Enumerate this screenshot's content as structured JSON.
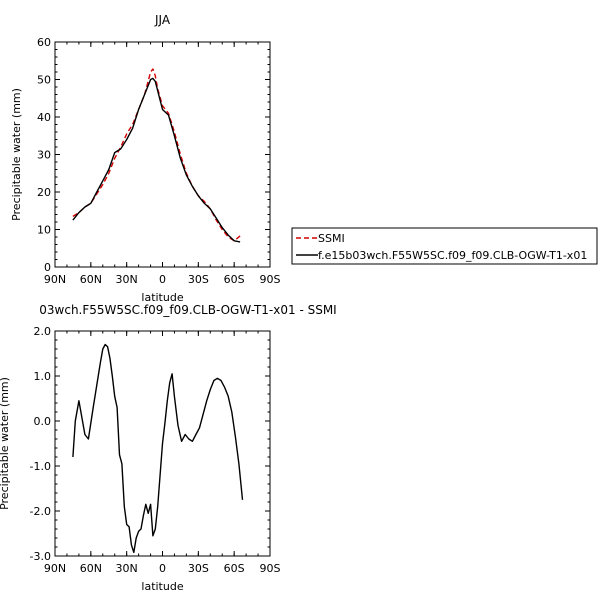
{
  "chart_data": [
    {
      "type": "line",
      "title": "JJA",
      "xlabel": "latitude",
      "ylabel": "Precipitable water (mm)",
      "xlim": [
        90,
        -90
      ],
      "ylim": [
        0,
        60
      ],
      "xticks": [
        90,
        60,
        30,
        0,
        -30,
        -60,
        -90
      ],
      "xtick_labels": [
        "90N",
        "60N",
        "30N",
        "0",
        "30S",
        "60S",
        "90S"
      ],
      "yticks": [
        0,
        10,
        20,
        30,
        40,
        50,
        60
      ],
      "ytick_labels": [
        "0",
        "10",
        "20",
        "30",
        "40",
        "50",
        "60"
      ],
      "legend_position": "right",
      "series": [
        {
          "name": "SSMI",
          "color": "#d40000",
          "dash": "dashed",
          "x": [
            75,
            70,
            65,
            60,
            55,
            50,
            45,
            40,
            35,
            30,
            25,
            20,
            15,
            10,
            8,
            6,
            4,
            0,
            -5,
            -10,
            -15,
            -20,
            -25,
            -30,
            -35,
            -40,
            -45,
            -50,
            -55,
            -60,
            -65
          ],
          "y": [
            13.5,
            14.5,
            16,
            17,
            19.5,
            22,
            25,
            29,
            32,
            35.5,
            38,
            42,
            46,
            52,
            52.8,
            51,
            47.5,
            43,
            41,
            36,
            30,
            25,
            21.5,
            19,
            17.5,
            15.5,
            12.5,
            10,
            8,
            7,
            8.3
          ]
        },
        {
          "name": "f.e15b03wch.F55W5SC.f09_f09.CLB-OGW-T1-x01",
          "color": "#000000",
          "dash": "solid",
          "x": [
            75,
            70,
            65,
            60,
            55,
            50,
            45,
            40,
            35,
            30,
            25,
            20,
            15,
            10,
            8,
            6,
            4,
            0,
            -5,
            -10,
            -15,
            -20,
            -25,
            -30,
            -35,
            -40,
            -45,
            -50,
            -55,
            -60,
            -65
          ],
          "y": [
            12.5,
            14.5,
            16,
            17,
            20,
            23,
            26,
            30.5,
            31.5,
            34,
            37,
            42,
            46,
            50,
            50.3,
            49.5,
            47,
            42,
            40.5,
            35,
            29,
            24.5,
            21.5,
            19,
            17,
            15.5,
            13,
            10.5,
            8.5,
            7,
            6.7
          ]
        }
      ]
    },
    {
      "type": "line",
      "title": "03wch.F55W5SC.f09_f09.CLB-OGW-T1-x01 - SSMI",
      "xlabel": "latitude",
      "ylabel": "Precipitable water (mm)",
      "xlim": [
        90,
        -90
      ],
      "ylim": [
        -3.0,
        2.0
      ],
      "xticks": [
        90,
        60,
        30,
        0,
        -30,
        -60,
        -90
      ],
      "xtick_labels": [
        "90N",
        "60N",
        "30N",
        "0",
        "30S",
        "60S",
        "90S"
      ],
      "yticks": [
        -3.0,
        -2.0,
        -1.0,
        0.0,
        1.0,
        2.0
      ],
      "ytick_labels": [
        "-3.0",
        "-2.0",
        "-1.0",
        "0.0",
        "1.0",
        "2.0"
      ],
      "series": [
        {
          "color": "#000000",
          "dash": "solid",
          "x": [
            75,
            73,
            70,
            67,
            65,
            62,
            58,
            55,
            52,
            50,
            48,
            46,
            44,
            42,
            40,
            38,
            36,
            34,
            32,
            30,
            28,
            26,
            24,
            22,
            20,
            18,
            16,
            14,
            12,
            10,
            8,
            6,
            4,
            2,
            0,
            -2,
            -4,
            -6,
            -8,
            -10,
            -13,
            -16,
            -19,
            -22,
            -25,
            -28,
            -31,
            -34,
            -37,
            -40,
            -43,
            -46,
            -49,
            -52,
            -55,
            -58,
            -61,
            -64,
            -67
          ],
          "y": [
            -0.8,
            0.0,
            0.45,
            0.0,
            -0.3,
            -0.4,
            0.3,
            0.8,
            1.3,
            1.6,
            1.7,
            1.65,
            1.4,
            1.0,
            0.55,
            0.3,
            -0.75,
            -0.95,
            -1.9,
            -2.3,
            -2.35,
            -2.75,
            -2.92,
            -2.6,
            -2.45,
            -2.4,
            -2.1,
            -1.85,
            -2.05,
            -1.85,
            -2.55,
            -2.4,
            -1.9,
            -1.2,
            -0.5,
            -0.05,
            0.45,
            0.85,
            1.05,
            0.55,
            -0.1,
            -0.45,
            -0.3,
            -0.4,
            -0.45,
            -0.3,
            -0.15,
            0.15,
            0.45,
            0.7,
            0.9,
            0.95,
            0.9,
            0.75,
            0.55,
            0.2,
            -0.35,
            -0.95,
            -1.75
          ]
        }
      ]
    }
  ]
}
